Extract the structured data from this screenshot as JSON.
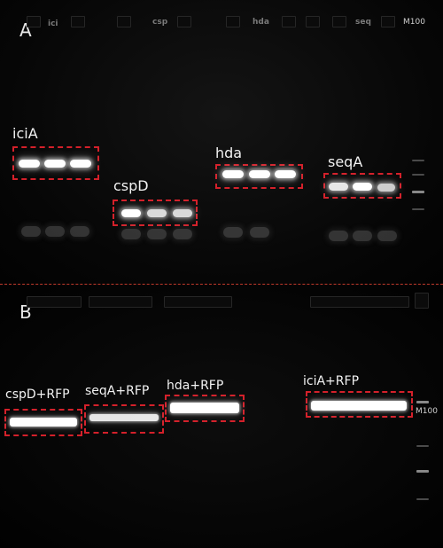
{
  "panel_a": {
    "label": "A",
    "lane_labels": [
      "ici",
      "csp",
      "hda",
      "seq"
    ],
    "marker": "M100",
    "genes": [
      "iciA",
      "cspD",
      "hda",
      "seqA"
    ]
  },
  "panel_b": {
    "label": "B",
    "marker": "M100",
    "constructs": [
      "cspD+RFP",
      "seqA+RFP",
      "hda+RFP",
      "iciA+RFP"
    ]
  },
  "colors": {
    "highlight_box": "#d4202a",
    "divider": "#c0392b",
    "band": "#ffffff"
  }
}
